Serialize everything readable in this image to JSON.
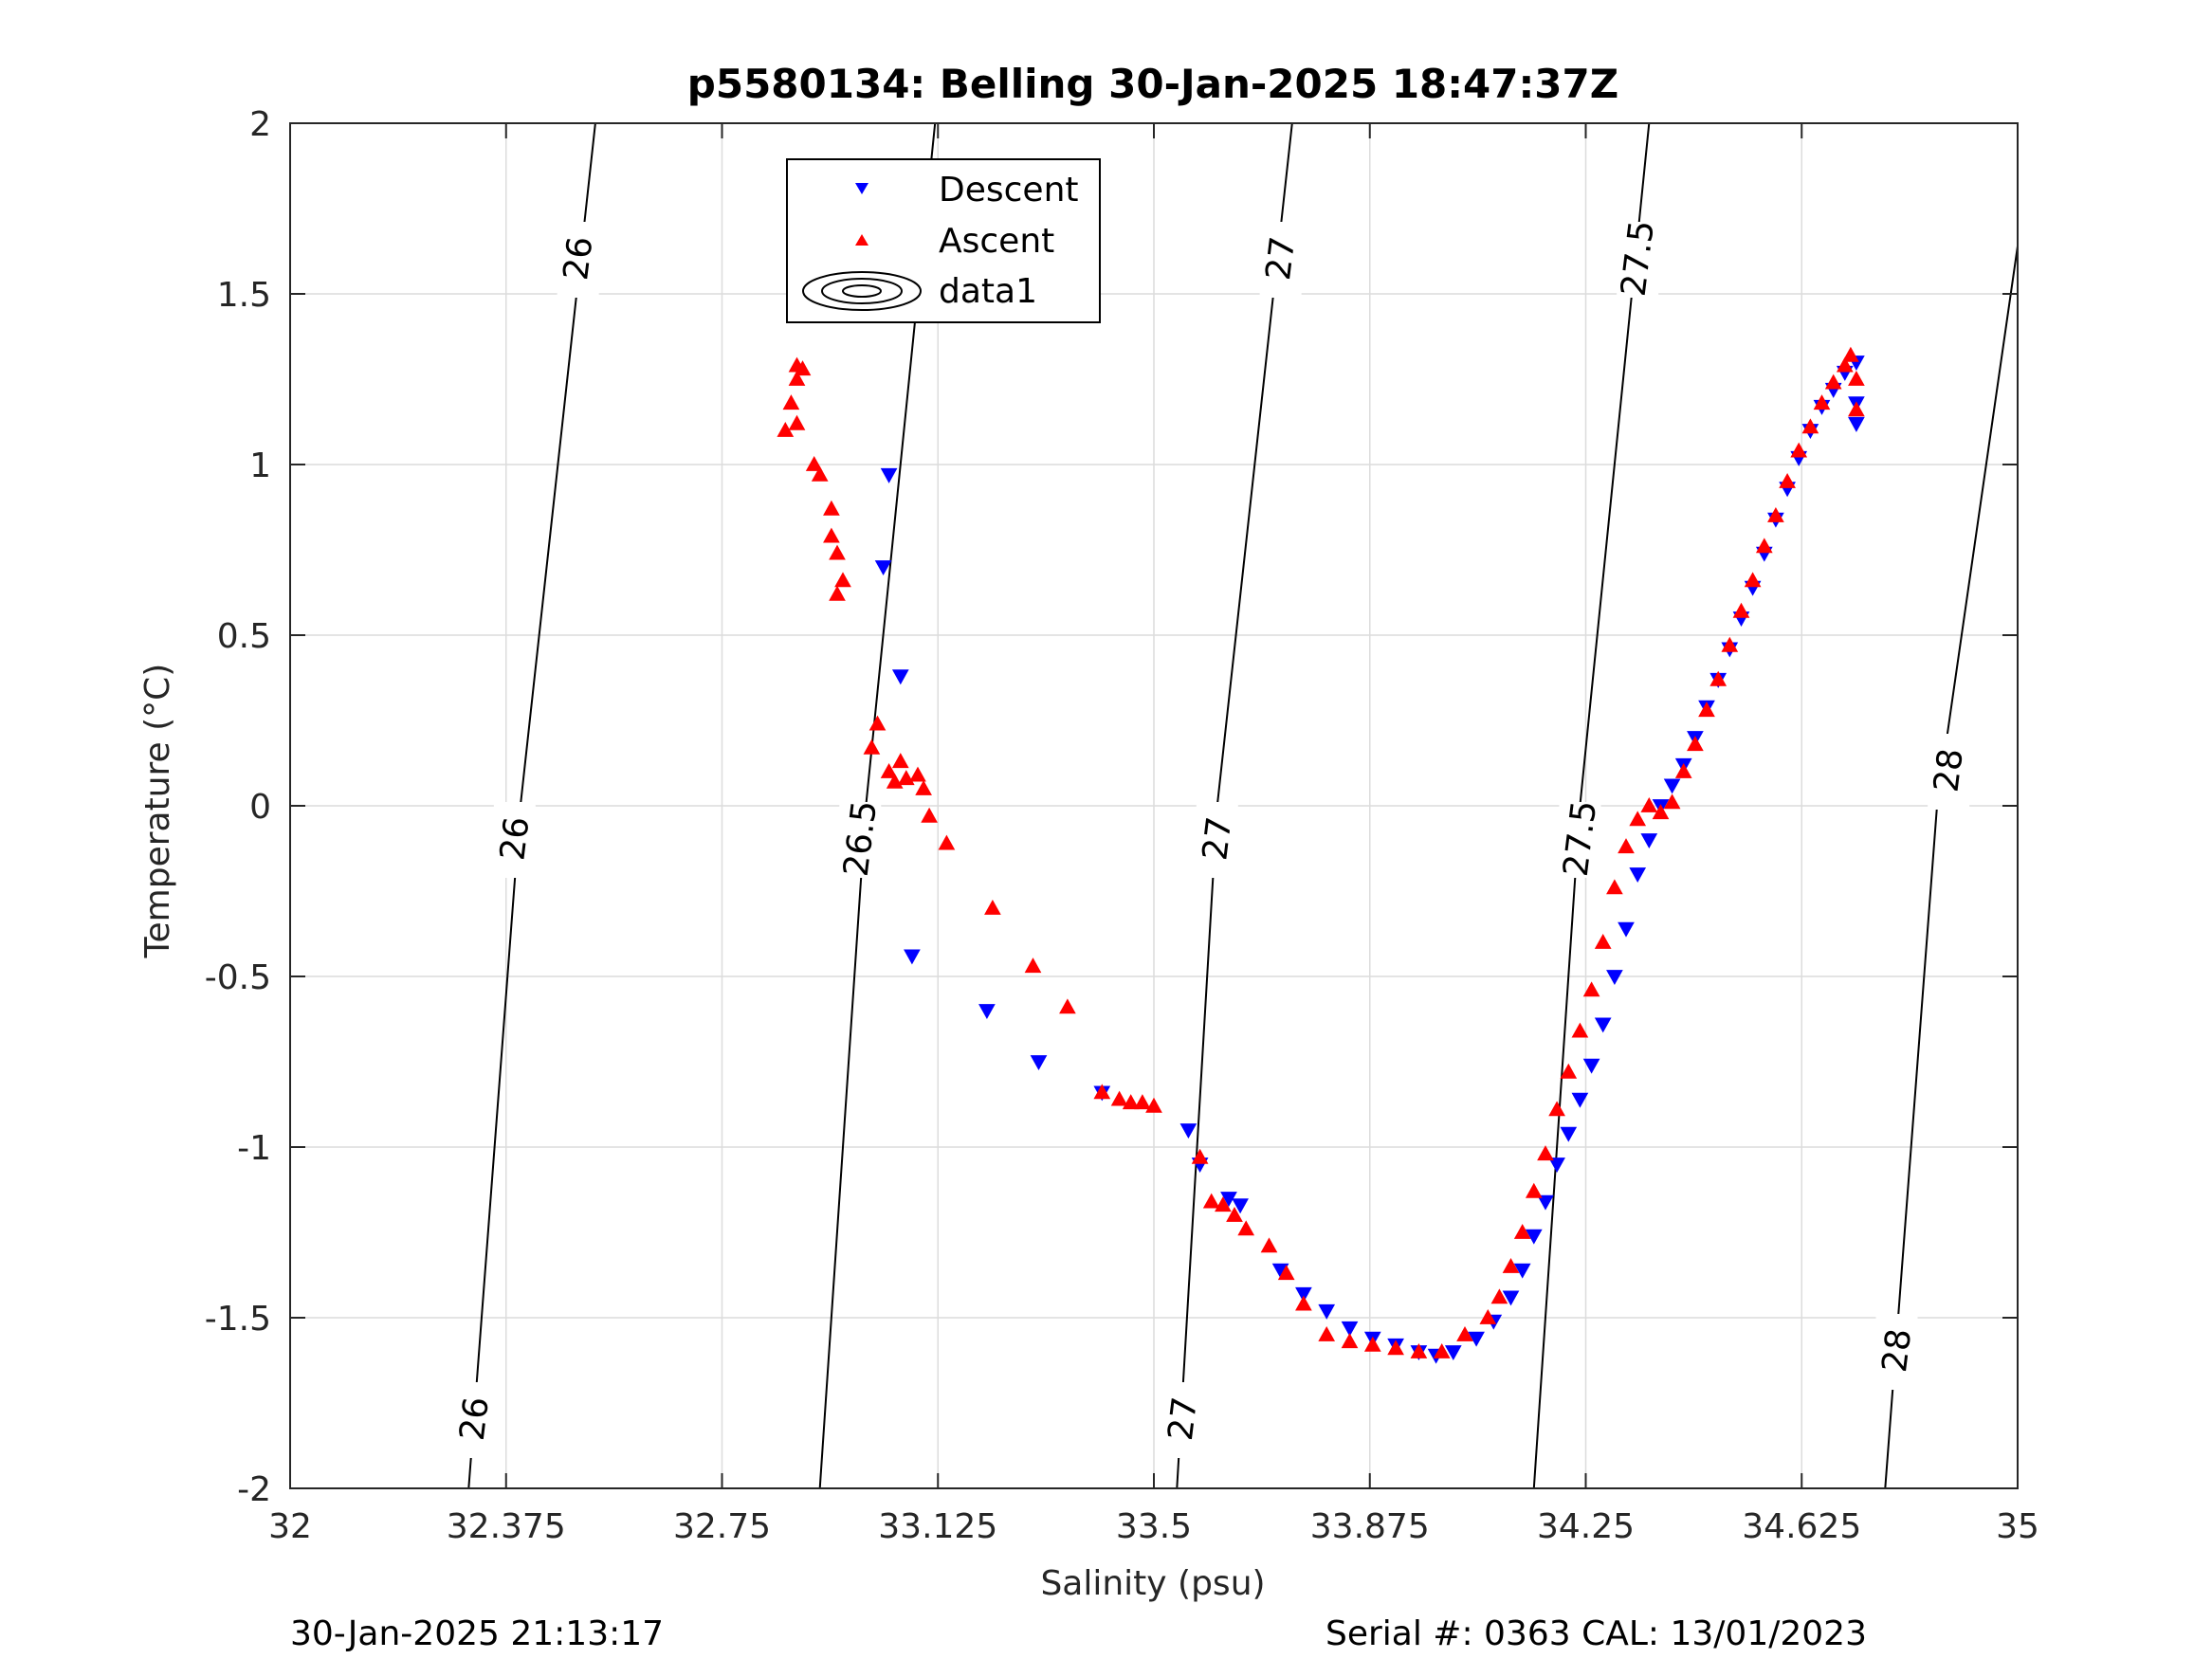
{
  "chart_data": {
    "type": "scatter",
    "title": "p5580134: Belling 30-Jan-2025 18:47:37Z",
    "xlabel": "Salinity (psu)",
    "ylabel": "Temperature (°C)",
    "xlim": [
      32,
      35
    ],
    "ylim": [
      -2,
      2
    ],
    "xticks": [
      "32",
      "32.375",
      "32.75",
      "33.125",
      "33.5",
      "33.875",
      "34.25",
      "34.625",
      "35"
    ],
    "yticks": [
      "2",
      "1.5",
      "1",
      "0.5",
      "0",
      "-0.5",
      "-1",
      "-1.5",
      "-2"
    ],
    "grid": true,
    "legend_position": "top-center",
    "series": [
      {
        "name": "Descent",
        "marker": "triangle-down",
        "color": "#0000ff",
        "points": [
          [
            33.04,
            0.97
          ],
          [
            33.03,
            0.7
          ],
          [
            33.06,
            0.38
          ],
          [
            33.08,
            -0.44
          ],
          [
            33.21,
            -0.6
          ],
          [
            33.3,
            -0.75
          ],
          [
            33.41,
            -0.84
          ],
          [
            33.56,
            -0.95
          ],
          [
            33.58,
            -1.05
          ],
          [
            33.63,
            -1.15
          ],
          [
            33.65,
            -1.17
          ],
          [
            33.72,
            -1.36
          ],
          [
            33.76,
            -1.43
          ],
          [
            33.8,
            -1.48
          ],
          [
            33.84,
            -1.53
          ],
          [
            33.88,
            -1.56
          ],
          [
            33.92,
            -1.58
          ],
          [
            33.96,
            -1.6
          ],
          [
            33.99,
            -1.61
          ],
          [
            34.02,
            -1.6
          ],
          [
            34.06,
            -1.56
          ],
          [
            34.09,
            -1.51
          ],
          [
            34.12,
            -1.44
          ],
          [
            34.14,
            -1.36
          ],
          [
            34.16,
            -1.26
          ],
          [
            34.18,
            -1.16
          ],
          [
            34.2,
            -1.05
          ],
          [
            34.22,
            -0.96
          ],
          [
            34.24,
            -0.86
          ],
          [
            34.26,
            -0.76
          ],
          [
            34.28,
            -0.64
          ],
          [
            34.3,
            -0.5
          ],
          [
            34.32,
            -0.36
          ],
          [
            34.34,
            -0.2
          ],
          [
            34.36,
            -0.1
          ],
          [
            34.38,
            0.0
          ],
          [
            34.4,
            0.06
          ],
          [
            34.42,
            0.12
          ],
          [
            34.44,
            0.2
          ],
          [
            34.46,
            0.29
          ],
          [
            34.48,
            0.37
          ],
          [
            34.5,
            0.46
          ],
          [
            34.52,
            0.55
          ],
          [
            34.54,
            0.64
          ],
          [
            34.56,
            0.74
          ],
          [
            34.58,
            0.84
          ],
          [
            34.6,
            0.93
          ],
          [
            34.62,
            1.02
          ],
          [
            34.64,
            1.1
          ],
          [
            34.66,
            1.17
          ],
          [
            34.68,
            1.22
          ],
          [
            34.7,
            1.27
          ],
          [
            34.72,
            1.3
          ],
          [
            34.72,
            1.18
          ],
          [
            34.72,
            1.12
          ]
        ]
      },
      {
        "name": "Ascent",
        "marker": "triangle-up",
        "color": "#ff0000",
        "points": [
          [
            32.88,
            1.29
          ],
          [
            32.89,
            1.28
          ],
          [
            32.88,
            1.25
          ],
          [
            32.87,
            1.18
          ],
          [
            32.88,
            1.12
          ],
          [
            32.86,
            1.1
          ],
          [
            32.91,
            1.0
          ],
          [
            32.92,
            0.97
          ],
          [
            32.94,
            0.87
          ],
          [
            32.94,
            0.79
          ],
          [
            32.95,
            0.74
          ],
          [
            32.96,
            0.66
          ],
          [
            32.95,
            0.62
          ],
          [
            33.02,
            0.24
          ],
          [
            33.01,
            0.17
          ],
          [
            33.04,
            0.1
          ],
          [
            33.05,
            0.07
          ],
          [
            33.06,
            0.13
          ],
          [
            33.07,
            0.08
          ],
          [
            33.09,
            0.09
          ],
          [
            33.1,
            0.05
          ],
          [
            33.11,
            -0.03
          ],
          [
            33.14,
            -0.11
          ],
          [
            33.22,
            -0.3
          ],
          [
            33.29,
            -0.47
          ],
          [
            33.35,
            -0.59
          ],
          [
            33.41,
            -0.84
          ],
          [
            33.44,
            -0.86
          ],
          [
            33.46,
            -0.87
          ],
          [
            33.48,
            -0.87
          ],
          [
            33.5,
            -0.88
          ],
          [
            33.58,
            -1.03
          ],
          [
            33.6,
            -1.16
          ],
          [
            33.62,
            -1.17
          ],
          [
            33.64,
            -1.2
          ],
          [
            33.66,
            -1.24
          ],
          [
            33.7,
            -1.29
          ],
          [
            33.73,
            -1.37
          ],
          [
            33.76,
            -1.46
          ],
          [
            33.8,
            -1.55
          ],
          [
            33.84,
            -1.57
          ],
          [
            33.88,
            -1.58
          ],
          [
            33.92,
            -1.59
          ],
          [
            33.96,
            -1.6
          ],
          [
            34.0,
            -1.6
          ],
          [
            34.04,
            -1.55
          ],
          [
            34.08,
            -1.5
          ],
          [
            34.1,
            -1.44
          ],
          [
            34.12,
            -1.35
          ],
          [
            34.14,
            -1.25
          ],
          [
            34.16,
            -1.13
          ],
          [
            34.18,
            -1.02
          ],
          [
            34.2,
            -0.89
          ],
          [
            34.22,
            -0.78
          ],
          [
            34.24,
            -0.66
          ],
          [
            34.26,
            -0.54
          ],
          [
            34.28,
            -0.4
          ],
          [
            34.3,
            -0.24
          ],
          [
            34.32,
            -0.12
          ],
          [
            34.34,
            -0.04
          ],
          [
            34.36,
            0.0
          ],
          [
            34.38,
            -0.02
          ],
          [
            34.4,
            0.01
          ],
          [
            34.42,
            0.1
          ],
          [
            34.44,
            0.18
          ],
          [
            34.46,
            0.28
          ],
          [
            34.48,
            0.37
          ],
          [
            34.5,
            0.47
          ],
          [
            34.52,
            0.57
          ],
          [
            34.54,
            0.66
          ],
          [
            34.56,
            0.76
          ],
          [
            34.58,
            0.85
          ],
          [
            34.6,
            0.95
          ],
          [
            34.62,
            1.04
          ],
          [
            34.64,
            1.11
          ],
          [
            34.66,
            1.18
          ],
          [
            34.68,
            1.24
          ],
          [
            34.7,
            1.29
          ],
          [
            34.71,
            1.32
          ],
          [
            34.72,
            1.25
          ],
          [
            34.72,
            1.16
          ]
        ]
      },
      {
        "name": "data1",
        "marker": "contour"
      }
    ],
    "contours": [
      {
        "label": "26",
        "points": [
          [
            32.31,
            -2.0
          ],
          [
            32.4,
            0.0
          ],
          [
            32.53,
            2.0
          ]
        ],
        "label_positions": [
          [
            32.32,
            -1.8
          ],
          [
            32.39,
            -0.1
          ],
          [
            32.5,
            1.6
          ]
        ]
      },
      {
        "label": "26.5",
        "points": [
          [
            32.92,
            -2.0
          ],
          [
            33.0,
            0.0
          ],
          [
            33.12,
            2.0
          ]
        ],
        "label_positions": [
          [
            32.99,
            -0.1
          ],
          [
            33.1,
            1.6
          ]
        ]
      },
      {
        "label": "27",
        "points": [
          [
            33.54,
            -2.0
          ],
          [
            33.61,
            0.0
          ],
          [
            33.74,
            2.0
          ]
        ],
        "label_positions": [
          [
            33.55,
            -1.8
          ],
          [
            33.61,
            -0.1
          ],
          [
            33.72,
            1.6
          ]
        ]
      },
      {
        "label": "27.5",
        "points": [
          [
            34.16,
            -2.0
          ],
          [
            34.24,
            0.0
          ],
          [
            34.36,
            2.0
          ]
        ],
        "label_positions": [
          [
            34.24,
            -0.1
          ],
          [
            34.34,
            1.6
          ]
        ]
      },
      {
        "label": "28",
        "points": [
          [
            34.77,
            -2.0
          ],
          [
            34.86,
            0.0
          ],
          [
            35.0,
            1.64
          ]
        ],
        "label_positions": [
          [
            34.79,
            -1.6
          ],
          [
            34.88,
            0.1
          ]
        ]
      }
    ]
  },
  "footer": {
    "timestamp": "30-Jan-2025 21:13:17",
    "serial_cal": "Serial #: 0363  CAL: 13/01/2023"
  }
}
